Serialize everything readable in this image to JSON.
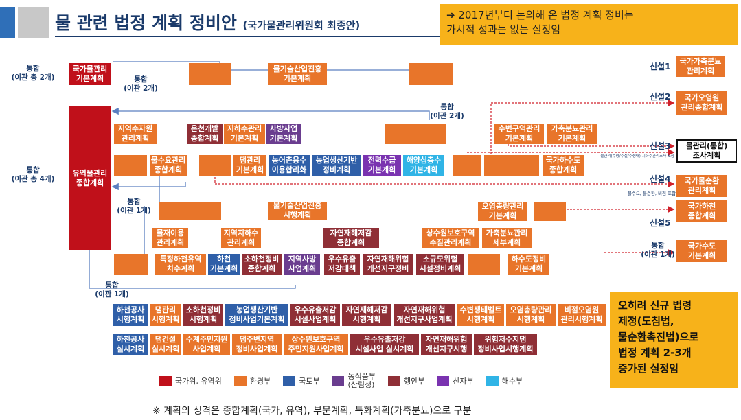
{
  "header": {
    "title": "물 관련 법정 계획 정비안",
    "subtitle": "(국가물관리위원회 최종안)",
    "callout": "➔ 2017년부터 논의해 온 법정 계획 정비는\n    가시적 성과는 없는 실정임"
  },
  "side_labels": {
    "top": "통합\n(이관 총 2개)",
    "mid": "통합\n(이관 총 4개)"
  },
  "merge_labels": {
    "m1": "통합\n(이관 2개)",
    "m2": "통합\n(이관 2개)",
    "m3": "통합\n(이관 1개)",
    "m4": "통합\n(이관 1개)",
    "m5": "통합\n(이관 1개)"
  },
  "boxes": {
    "b01": "국가물관리\n기본계획",
    "b02": "물기술산업진흥\n기본계획",
    "b03": "유역물관리\n종합계획",
    "b04": "지역수자원\n관리계획",
    "b05": "온천개발\n종합계획",
    "b06": "지하수관리\n기본계획",
    "b07": "사방사업\n기본계획",
    "b08": "수변구역관리\n기본계획",
    "b09": "가축분뇨관리\n기본계획",
    "b10": "물수요관리\n종합계획",
    "b11": "댐관리\n기본계획",
    "b12": "농어촌용수\n이용합리화",
    "b13": "농업생산기반\n정비계획",
    "b14": "전력수급\n기본계획",
    "b15": "해양심층수\n기본계획",
    "b16": "국가하수도\n종합계획",
    "b17": "물기술산업진흥\n시행계획",
    "b18": "오염총량관리\n기본계획",
    "b19": "물재이용\n관리계획",
    "b20": "지역지하수\n관리계획",
    "b21": "자연재해저감\n종합계획",
    "b22": "상수원보호구역\n수질관리계획",
    "b23": "가축분뇨관리\n세부계획",
    "b24": "특정하천유역\n치수계획",
    "b25": "하천\n기본계획",
    "b26": "소하천정비\n종합계획",
    "b27": "지역사방\n사업계획",
    "b28": "우수유출\n저감대책",
    "b29": "자연재해위험\n개선지구정비",
    "b30": "소규모위험\n시설정비계획",
    "b31": "하수도정비\n기본계획",
    "b32": "하천공사\n시행계획",
    "b33": "댐관리\n시행계획",
    "b34": "소하천정비\n시행계획",
    "b35": "농업생산기반\n정비사업기본계획",
    "b36": "우수유출저감\n시설사업계획",
    "b37": "자연재해저감\n시행계획",
    "b38": "자연재해위험\n개선지구사업계획",
    "b39": "수변생태벨트\n시행계획",
    "b40": "오염총량관리\n시행계획",
    "b41": "비점오염원\n관리시행계획",
    "b42": "하천공사\n실시계획",
    "b43": "댐건설\n실시계획",
    "b44": "수계주민지원\n사업계획",
    "b45": "댐주변지역\n정비사업계획",
    "b46": "상수원보호구역\n주민지원사업계획",
    "b47": "우수유출저감\n시설사업 실시계획",
    "b48": "자연재해위험\n개선지구시행",
    "b49": "위험저수지댐\n정비사업시행계획"
  },
  "new_plans": [
    {
      "label": "신설1",
      "box": "국가가축분뇨\n관리계획"
    },
    {
      "label": "신설2",
      "box": "국가오염원\n관리종합계획"
    },
    {
      "label": "신설3",
      "box": "물관리(통합)\n조사계획"
    },
    {
      "label": "신설4",
      "box": "국가물순환\n관리계획"
    },
    {
      "label": "신설5",
      "box": "국가하천\n종합계획"
    }
  ],
  "new4_note": "물수요, 물순환, 비점 포함",
  "new3_note": "물관리(수량/수질/수생태) 지하수관리조사 포함",
  "merge_last": "통합\n(이관 1개)",
  "merge_last_box": "국가수도\n기본계획",
  "conclusion": "오히려 신규 법령\n제정(도침법,\n물순환촉진법)으로\n법정 계획 2-3개\n증가된 실정임",
  "legend": [
    {
      "name": "국가위, 유역위",
      "color": "#c0101a"
    },
    {
      "name": "환경부",
      "color": "#e8752a"
    },
    {
      "name": "국토부",
      "color": "#2f5fa8"
    },
    {
      "name": "농식품부\n(산림청)",
      "color": "#6a3d8f"
    },
    {
      "name": "행안부",
      "color": "#8f2f36"
    },
    {
      "name": "산자부",
      "color": "#7a33b0"
    },
    {
      "name": "해수부",
      "color": "#30b4e6"
    }
  ],
  "footnote": "※ 계획의 성격은 종합계획(국가, 유역), 부문계획, 특화계획(가축분뇨)으로 구분"
}
